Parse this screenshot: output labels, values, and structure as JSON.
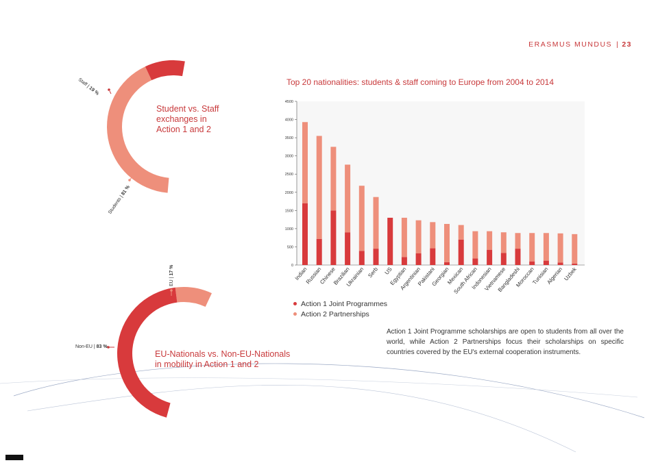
{
  "header": {
    "section": "ERASMUS MUNDUS",
    "page_number": "23"
  },
  "donut1": {
    "title": "Student vs. Staff exchanges in Action 1 and 2",
    "segments": [
      {
        "name": "Staff",
        "percent_label": "19 %",
        "value": 19,
        "color": "#d83a3c"
      },
      {
        "name": "Students",
        "percent_label": "81 %",
        "value": 81,
        "color": "#ee8f7b"
      }
    ]
  },
  "donut2": {
    "title": "EU-Nationals vs. Non-EU-Nationals in mobility in Action 1 and 2",
    "segments": [
      {
        "name": "EU",
        "percent_label": "17 %",
        "value": 17,
        "color": "#ee8f7b"
      },
      {
        "name": "Non-EU",
        "percent_label": "83 %",
        "value": 83,
        "color": "#d83a3c"
      }
    ]
  },
  "colors": {
    "accent": "#c8393b",
    "action1": "#d83a3c",
    "action2": "#ee8f7b"
  },
  "chart_data": {
    "type": "bar",
    "stacked": true,
    "title": "Top 20 nationalities: students & staff coming to Europe from 2004 to 2014",
    "categories": [
      "Indian",
      "Russian",
      "Chinese",
      "Brazilian",
      "Ukrainian",
      "Serb",
      "US",
      "Egyptian",
      "Argentinian",
      "Pakistani",
      "Georgian",
      "Mexican",
      "South African",
      "Indonesian",
      "Vietnamese",
      "Bangladeshi",
      "Moroccan",
      "Tunisian",
      "Algerian",
      "Uzbek"
    ],
    "series": [
      {
        "name": "Action 1 Joint Programmes",
        "color": "#d83a3c",
        "values": [
          1700,
          720,
          1500,
          900,
          390,
          450,
          1300,
          220,
          320,
          460,
          80,
          700,
          180,
          420,
          330,
          450,
          100,
          120,
          70,
          40
        ]
      },
      {
        "name": "Action 2 Partnerships",
        "color": "#ee8f7b",
        "values": [
          2230,
          2830,
          1750,
          1860,
          1790,
          1420,
          0,
          1080,
          910,
          720,
          1050,
          400,
          750,
          510,
          570,
          430,
          780,
          760,
          800,
          810
        ]
      }
    ],
    "yticks": [
      0,
      500,
      1000,
      1500,
      2000,
      2500,
      3000,
      3500,
      4000,
      4500
    ],
    "ylim": [
      0,
      4500
    ],
    "xlabel": "",
    "ylabel": "",
    "legend_position": "bottom-left"
  },
  "paragraph": "Action 1 Joint Programme scholarships are open to students from all over the world, while Action 2 Partnerships focus their scholarships on specific countries covered by the EU's external cooperation instruments."
}
